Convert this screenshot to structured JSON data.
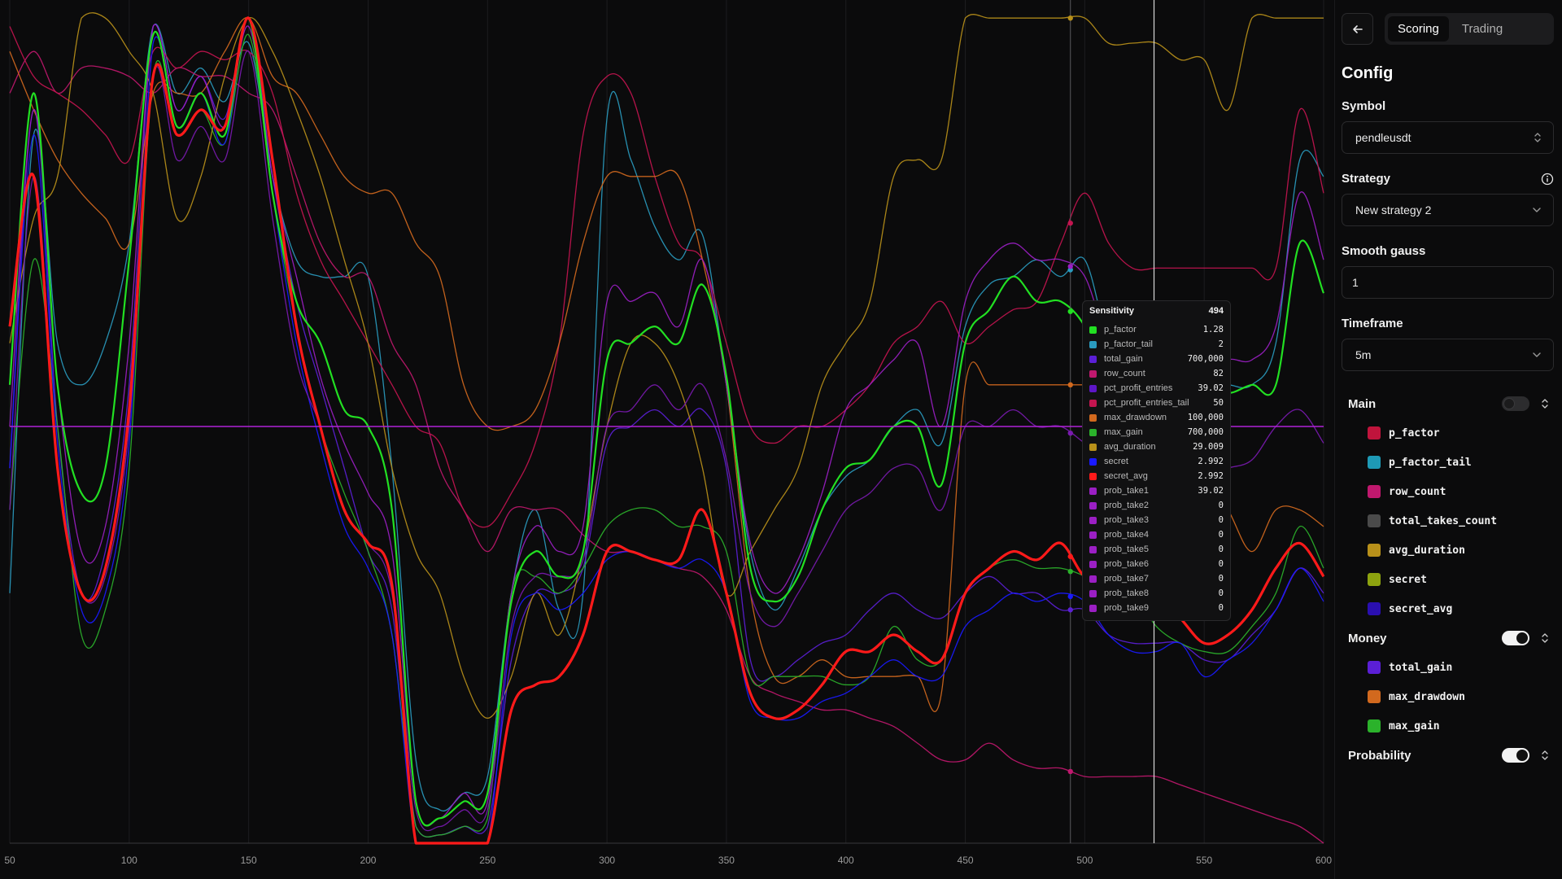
{
  "chart_data": {
    "type": "line",
    "xlim": [
      50,
      600
    ],
    "ylim": [
      0,
      1
    ],
    "grid": "vertical",
    "x_ticks": [
      50,
      100,
      150,
      200,
      250,
      300,
      350,
      400,
      450,
      500,
      550,
      600
    ],
    "crosshair": {
      "x": 494,
      "y": 0.5
    },
    "cursor_x": 529,
    "tooltip": {
      "title": "Sensitivity",
      "x": "494",
      "rows": [
        {
          "name": "p_factor",
          "value": "1.28",
          "color": "#22e022"
        },
        {
          "name": "p_factor_tail",
          "value": "2",
          "color": "#2a9bbf"
        },
        {
          "name": "total_gain",
          "value": "700,000",
          "color": "#5b1fd6"
        },
        {
          "name": "row_count",
          "value": "82",
          "color": "#c0186e"
        },
        {
          "name": "pct_profit_entries",
          "value": "39.02",
          "color": "#5d16c7"
        },
        {
          "name": "pct_profit_entries_tail",
          "value": "50",
          "color": "#c41550"
        },
        {
          "name": "max_drawdown",
          "value": "100,000",
          "color": "#d2691e"
        },
        {
          "name": "max_gain",
          "value": "700,000",
          "color": "#2bb22b"
        },
        {
          "name": "avg_duration",
          "value": "29.009",
          "color": "#b8901a"
        },
        {
          "name": "secret",
          "value": "2.992",
          "color": "#1a1aff"
        },
        {
          "name": "secret_avg",
          "value": "2.992",
          "color": "#ff1a1a"
        },
        {
          "name": "prob_take1",
          "value": "39.02",
          "color": "#9b1fc4"
        },
        {
          "name": "prob_take2",
          "value": "0",
          "color": "#9b1fc4"
        },
        {
          "name": "prob_take3",
          "value": "0",
          "color": "#9b1fc4"
        },
        {
          "name": "prob_take4",
          "value": "0",
          "color": "#9b1fc4"
        },
        {
          "name": "prob_take5",
          "value": "0",
          "color": "#9b1fc4"
        },
        {
          "name": "prob_take6",
          "value": "0",
          "color": "#9b1fc4"
        },
        {
          "name": "prob_take7",
          "value": "0",
          "color": "#9b1fc4"
        },
        {
          "name": "prob_take8",
          "value": "0",
          "color": "#9b1fc4"
        },
        {
          "name": "prob_take9",
          "value": "0",
          "color": "#9b1fc4"
        }
      ]
    },
    "x": [
      50,
      60,
      70,
      80,
      90,
      100,
      110,
      120,
      130,
      140,
      150,
      160,
      170,
      180,
      190,
      200,
      210,
      220,
      230,
      240,
      250,
      260,
      270,
      280,
      290,
      300,
      310,
      320,
      330,
      340,
      350,
      360,
      370,
      380,
      390,
      400,
      410,
      420,
      430,
      440,
      450,
      460,
      470,
      480,
      490,
      500,
      510,
      520,
      530,
      540,
      550,
      560,
      570,
      580,
      590,
      600
    ],
    "series": [
      {
        "name": "secret_avg",
        "color": "#ff1a1a",
        "width": 3.2,
        "values": [
          0.62,
          0.8,
          0.45,
          0.3,
          0.33,
          0.52,
          0.92,
          0.85,
          0.88,
          0.86,
          0.99,
          0.82,
          0.62,
          0.5,
          0.4,
          0.36,
          0.31,
          0.0,
          0.0,
          0.0,
          0.0,
          0.16,
          0.19,
          0.2,
          0.25,
          0.35,
          0.35,
          0.34,
          0.34,
          0.4,
          0.3,
          0.18,
          0.15,
          0.16,
          0.19,
          0.23,
          0.23,
          0.25,
          0.23,
          0.22,
          0.3,
          0.33,
          0.35,
          0.34,
          0.36,
          0.32,
          0.32,
          0.3,
          0.3,
          0.27,
          0.24,
          0.25,
          0.28,
          0.33,
          0.36,
          0.32
        ]
      },
      {
        "name": "p_factor",
        "color": "#22e022",
        "width": 2.2,
        "values": [
          0.55,
          0.9,
          0.55,
          0.42,
          0.45,
          0.7,
          0.97,
          0.86,
          0.9,
          0.85,
          0.99,
          0.78,
          0.65,
          0.6,
          0.52,
          0.5,
          0.4,
          0.05,
          0.03,
          0.05,
          0.06,
          0.29,
          0.35,
          0.32,
          0.35,
          0.58,
          0.6,
          0.62,
          0.6,
          0.67,
          0.56,
          0.33,
          0.29,
          0.32,
          0.4,
          0.45,
          0.46,
          0.5,
          0.5,
          0.43,
          0.6,
          0.64,
          0.68,
          0.65,
          0.65,
          0.62,
          0.55,
          0.55,
          0.55,
          0.54,
          0.55,
          0.54,
          0.55,
          0.55,
          0.72,
          0.66
        ]
      },
      {
        "name": "p_factor_tail",
        "color": "#2a9bbf",
        "width": 1.3,
        "values": [
          0.3,
          0.85,
          0.6,
          0.55,
          0.6,
          0.72,
          0.98,
          0.9,
          0.93,
          0.89,
          0.96,
          0.8,
          0.7,
          0.68,
          0.68,
          0.68,
          0.45,
          0.1,
          0.04,
          0.06,
          0.08,
          0.3,
          0.4,
          0.28,
          0.3,
          0.87,
          0.82,
          0.74,
          0.7,
          0.73,
          0.55,
          0.35,
          0.28,
          0.33,
          0.4,
          0.44,
          0.46,
          0.5,
          0.52,
          0.48,
          0.62,
          0.67,
          0.68,
          0.7,
          0.68,
          0.7,
          0.6,
          0.55,
          0.54,
          0.55,
          0.55,
          0.55,
          0.55,
          0.6,
          0.82,
          0.8
        ]
      },
      {
        "name": "total_gain",
        "color": "#5b1fd6",
        "width": 1.3,
        "values": [
          0.45,
          0.88,
          0.5,
          0.3,
          0.35,
          0.55,
          0.98,
          0.88,
          0.92,
          0.87,
          0.99,
          0.8,
          0.65,
          0.55,
          0.45,
          0.35,
          0.28,
          0.02,
          0.01,
          0.02,
          0.02,
          0.22,
          0.3,
          0.3,
          0.33,
          0.48,
          0.5,
          0.52,
          0.5,
          0.52,
          0.45,
          0.22,
          0.2,
          0.22,
          0.24,
          0.25,
          0.28,
          0.3,
          0.28,
          0.27,
          0.3,
          0.32,
          0.3,
          0.3,
          0.28,
          0.28,
          0.25,
          0.24,
          0.24,
          0.24,
          0.22,
          0.22,
          0.25,
          0.28,
          0.33,
          0.3
        ]
      },
      {
        "name": "row_count",
        "color": "#c0186e",
        "width": 1.3,
        "values": [
          0.9,
          0.95,
          0.9,
          0.93,
          0.93,
          0.92,
          0.9,
          0.93,
          0.92,
          0.92,
          0.9,
          0.88,
          0.8,
          0.72,
          0.68,
          0.68,
          0.6,
          0.55,
          0.45,
          0.4,
          0.35,
          0.4,
          0.4,
          0.4,
          0.37,
          0.35,
          0.35,
          0.34,
          0.33,
          0.32,
          0.28,
          0.2,
          0.18,
          0.17,
          0.16,
          0.16,
          0.15,
          0.14,
          0.12,
          0.1,
          0.1,
          0.12,
          0.1,
          0.09,
          0.09,
          0.08,
          0.08,
          0.08,
          0.08,
          0.07,
          0.06,
          0.05,
          0.04,
          0.03,
          0.02,
          0.0
        ]
      },
      {
        "name": "pct_profit_entries_tail",
        "color": "#c41550",
        "width": 1.3,
        "values": [
          0.98,
          0.92,
          0.9,
          0.88,
          0.85,
          0.82,
          0.95,
          0.93,
          0.95,
          0.94,
          0.95,
          0.9,
          0.78,
          0.7,
          0.65,
          0.6,
          0.55,
          0.5,
          0.48,
          0.4,
          0.38,
          0.42,
          0.48,
          0.6,
          0.85,
          0.92,
          0.9,
          0.8,
          0.72,
          0.7,
          0.6,
          0.5,
          0.48,
          0.5,
          0.5,
          0.52,
          0.55,
          0.6,
          0.62,
          0.65,
          0.6,
          0.62,
          0.64,
          0.65,
          0.72,
          0.78,
          0.72,
          0.69,
          0.69,
          0.69,
          0.69,
          0.69,
          0.69,
          0.69,
          0.88,
          0.78
        ]
      },
      {
        "name": "max_drawdown",
        "color": "#d2691e",
        "width": 1.3,
        "values": [
          0.95,
          0.88,
          0.82,
          0.78,
          0.75,
          0.72,
          0.9,
          0.9,
          0.9,
          0.95,
          0.99,
          0.92,
          0.9,
          0.85,
          0.8,
          0.78,
          0.78,
          0.72,
          0.68,
          0.55,
          0.5,
          0.5,
          0.52,
          0.6,
          0.72,
          0.8,
          0.8,
          0.8,
          0.8,
          0.7,
          0.55,
          0.3,
          0.2,
          0.2,
          0.22,
          0.2,
          0.2,
          0.2,
          0.2,
          0.18,
          0.55,
          0.55,
          0.55,
          0.55,
          0.55,
          0.55,
          0.55,
          0.48,
          0.48,
          0.46,
          0.44,
          0.4,
          0.35,
          0.4,
          0.4,
          0.38
        ]
      },
      {
        "name": "max_gain",
        "color": "#2bb22b",
        "width": 1.3,
        "values": [
          0.4,
          0.7,
          0.5,
          0.25,
          0.28,
          0.45,
          0.92,
          0.85,
          0.88,
          0.84,
          0.97,
          0.78,
          0.62,
          0.5,
          0.42,
          0.35,
          0.25,
          0.02,
          0.01,
          0.02,
          0.03,
          0.3,
          0.32,
          0.3,
          0.33,
          0.38,
          0.4,
          0.4,
          0.38,
          0.38,
          0.35,
          0.2,
          0.2,
          0.2,
          0.2,
          0.19,
          0.2,
          0.26,
          0.22,
          0.22,
          0.3,
          0.33,
          0.34,
          0.33,
          0.33,
          0.32,
          0.3,
          0.3,
          0.26,
          0.24,
          0.23,
          0.23,
          0.26,
          0.3,
          0.38,
          0.33
        ]
      },
      {
        "name": "avg_duration",
        "color": "#b8901a",
        "width": 1.3,
        "values": [
          0.6,
          0.75,
          0.8,
          0.99,
          0.99,
          0.95,
          0.9,
          0.75,
          0.8,
          0.92,
          0.99,
          0.95,
          0.88,
          0.8,
          0.7,
          0.6,
          0.45,
          0.35,
          0.3,
          0.2,
          0.15,
          0.2,
          0.3,
          0.25,
          0.35,
          0.5,
          0.6,
          0.6,
          0.55,
          0.45,
          0.3,
          0.35,
          0.4,
          0.45,
          0.55,
          0.6,
          0.65,
          0.8,
          0.82,
          0.82,
          0.99,
          0.99,
          0.99,
          0.99,
          0.99,
          0.99,
          0.96,
          0.96,
          0.96,
          0.94,
          0.94,
          0.88,
          0.99,
          0.99,
          0.99,
          0.99
        ]
      },
      {
        "name": "secret",
        "color": "#1a1aff",
        "width": 1.3,
        "values": [
          0.45,
          0.85,
          0.48,
          0.28,
          0.3,
          0.48,
          0.96,
          0.86,
          0.9,
          0.84,
          0.99,
          0.78,
          0.6,
          0.48,
          0.38,
          0.33,
          0.25,
          0.0,
          0.0,
          0.0,
          0.0,
          0.25,
          0.3,
          0.28,
          0.3,
          0.34,
          0.35,
          0.34,
          0.33,
          0.34,
          0.3,
          0.17,
          0.15,
          0.15,
          0.17,
          0.18,
          0.2,
          0.22,
          0.2,
          0.2,
          0.26,
          0.28,
          0.3,
          0.29,
          0.3,
          0.29,
          0.25,
          0.23,
          0.23,
          0.24,
          0.2,
          0.22,
          0.24,
          0.28,
          0.33,
          0.29
        ]
      },
      {
        "name": "prob_take1",
        "color": "#9b1fc4",
        "width": 1.3,
        "values": [
          0.5,
          0.88,
          0.55,
          0.35,
          0.38,
          0.6,
          0.98,
          0.88,
          0.92,
          0.86,
          0.98,
          0.8,
          0.68,
          0.56,
          0.48,
          0.42,
          0.35,
          0.05,
          0.03,
          0.06,
          0.05,
          0.3,
          0.38,
          0.35,
          0.38,
          0.65,
          0.65,
          0.66,
          0.62,
          0.7,
          0.55,
          0.36,
          0.3,
          0.34,
          0.42,
          0.52,
          0.55,
          0.58,
          0.6,
          0.5,
          0.65,
          0.7,
          0.72,
          0.7,
          0.7,
          0.68,
          0.6,
          0.58,
          0.58,
          0.56,
          0.56,
          0.58,
          0.58,
          0.62,
          0.78,
          0.7
        ]
      },
      {
        "name": "prob_take2",
        "color": "#7a1ab0",
        "width": 1.3,
        "values": [
          0.4,
          0.8,
          0.45,
          0.3,
          0.32,
          0.5,
          0.92,
          0.82,
          0.86,
          0.82,
          0.95,
          0.75,
          0.58,
          0.5,
          0.4,
          0.36,
          0.3,
          0.04,
          0.02,
          0.04,
          0.04,
          0.26,
          0.32,
          0.32,
          0.34,
          0.5,
          0.52,
          0.55,
          0.52,
          0.55,
          0.46,
          0.3,
          0.26,
          0.3,
          0.35,
          0.4,
          0.42,
          0.45,
          0.45,
          0.4,
          0.5,
          0.5,
          0.52,
          0.5,
          0.5,
          0.48,
          0.46,
          0.44,
          0.44,
          0.44,
          0.44,
          0.45,
          0.46,
          0.5,
          0.52,
          0.48
        ]
      }
    ]
  },
  "sidebar": {
    "back_icon": "arrow-left-icon",
    "tabs": [
      {
        "label": "Scoring",
        "active": true
      },
      {
        "label": "Trading",
        "active": false
      }
    ],
    "title": "Config",
    "symbol": {
      "label": "Symbol",
      "value": "pendleusdt"
    },
    "strategy": {
      "label": "Strategy",
      "value": "New strategy 2",
      "info_icon": "info-icon"
    },
    "smooth": {
      "label": "Smooth gauss",
      "value": "1"
    },
    "timeframe": {
      "label": "Timeframe",
      "value": "5m"
    },
    "groups": [
      {
        "name": "Main",
        "enabled": false,
        "metrics": [
          {
            "name": "p_factor",
            "color": "#c0143c"
          },
          {
            "name": "p_factor_tail",
            "color": "#1e9ab6"
          },
          {
            "name": "row_count",
            "color": "#c0186e"
          },
          {
            "name": "total_takes_count",
            "color": "#4a4a4a"
          },
          {
            "name": "avg_duration",
            "color": "#b8901a"
          },
          {
            "name": "secret",
            "color": "#8da30f"
          },
          {
            "name": "secret_avg",
            "color": "#2a0fb0"
          }
        ]
      },
      {
        "name": "Money",
        "enabled": true,
        "metrics": [
          {
            "name": "total_gain",
            "color": "#5b1fd6"
          },
          {
            "name": "max_drawdown",
            "color": "#d2691e"
          },
          {
            "name": "max_gain",
            "color": "#2bb22b"
          }
        ]
      },
      {
        "name": "Probability",
        "enabled": true,
        "metrics": []
      }
    ]
  }
}
